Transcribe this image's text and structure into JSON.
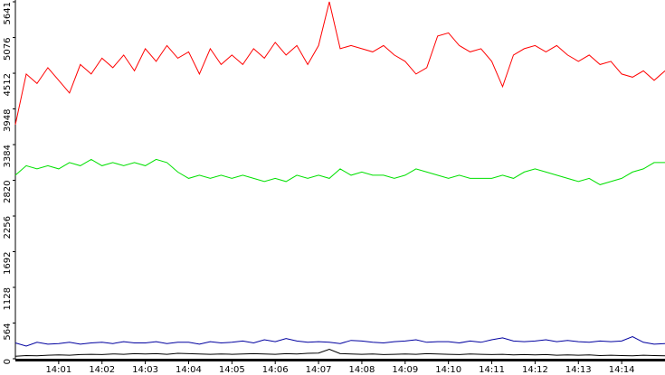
{
  "chart_data": {
    "type": "line",
    "x": [
      0,
      0.25,
      0.5,
      0.75,
      1,
      1.25,
      1.5,
      1.75,
      2,
      2.25,
      2.5,
      2.75,
      3,
      3.25,
      3.5,
      3.75,
      4,
      4.25,
      4.5,
      4.75,
      5,
      5.25,
      5.5,
      5.75,
      6,
      6.25,
      6.5,
      6.75,
      7,
      7.25,
      7.5,
      7.75,
      8,
      8.25,
      8.5,
      8.75,
      9,
      9.25,
      9.5,
      9.75,
      10,
      10.25,
      10.5,
      10.75,
      11,
      11.25,
      11.5,
      11.75,
      12,
      12.25,
      12.5,
      12.75,
      13,
      13.25,
      13.5,
      13.75,
      14,
      14.25,
      14.5,
      14.75,
      15
    ],
    "series": [
      {
        "color": "#ff0000",
        "values": [
          3700,
          4500,
          4350,
          4600,
          4400,
          4200,
          4650,
          4500,
          4750,
          4600,
          4800,
          4550,
          4900,
          4700,
          4950,
          4750,
          4850,
          4500,
          4900,
          4650,
          4800,
          4650,
          4900,
          4750,
          5000,
          4800,
          4950,
          4650,
          4950,
          5641,
          4900,
          4950,
          4900,
          4850,
          4950,
          4800,
          4700,
          4500,
          4600,
          5100,
          5150,
          4950,
          4850,
          4900,
          4700,
          4300,
          4800,
          4900,
          4950,
          4850,
          4950,
          4800,
          4700,
          4800,
          4650,
          4700,
          4500,
          4450,
          4550,
          4400,
          4550
        ]
      },
      {
        "color": "#00e000",
        "values": [
          2900,
          3050,
          3000,
          3050,
          3000,
          3100,
          3050,
          3150,
          3050,
          3100,
          3050,
          3100,
          3050,
          3150,
          3100,
          2950,
          2850,
          2900,
          2850,
          2900,
          2850,
          2900,
          2850,
          2800,
          2850,
          2800,
          2900,
          2850,
          2900,
          2850,
          3000,
          2900,
          2950,
          2900,
          2900,
          2850,
          2900,
          3000,
          2950,
          2900,
          2850,
          2900,
          2850,
          2850,
          2850,
          2900,
          2850,
          2950,
          3000,
          2950,
          2900,
          2850,
          2800,
          2850,
          2750,
          2800,
          2850,
          2950,
          3000,
          3100,
          3100
        ]
      },
      {
        "color": "#0000a0",
        "values": [
          250,
          200,
          260,
          230,
          240,
          260,
          230,
          250,
          260,
          240,
          270,
          250,
          250,
          270,
          240,
          260,
          260,
          230,
          270,
          250,
          260,
          280,
          250,
          300,
          270,
          320,
          280,
          260,
          270,
          260,
          240,
          290,
          280,
          260,
          250,
          270,
          280,
          300,
          260,
          270,
          270,
          250,
          280,
          260,
          300,
          330,
          280,
          270,
          280,
          300,
          270,
          290,
          270,
          260,
          280,
          270,
          280,
          350,
          260,
          230,
          240
        ]
      },
      {
        "color": "#000000",
        "values": [
          40,
          50,
          45,
          55,
          60,
          55,
          65,
          70,
          65,
          75,
          70,
          80,
          75,
          80,
          70,
          85,
          80,
          75,
          70,
          75,
          70,
          75,
          80,
          75,
          70,
          80,
          75,
          85,
          90,
          150,
          80,
          75,
          70,
          75,
          65,
          70,
          75,
          70,
          80,
          75,
          70,
          65,
          75,
          70,
          65,
          70,
          60,
          65,
          60,
          65,
          55,
          60,
          55,
          60,
          50,
          55,
          50,
          45,
          55,
          50,
          45
        ]
      }
    ],
    "xlim": [
      0,
      15
    ],
    "xticks": [
      {
        "value": 1,
        "label": "14:01"
      },
      {
        "value": 2,
        "label": "14:02"
      },
      {
        "value": 3,
        "label": "14:03"
      },
      {
        "value": 4,
        "label": "14:04"
      },
      {
        "value": 5,
        "label": "14:05"
      },
      {
        "value": 6,
        "label": "14:06"
      },
      {
        "value": 7,
        "label": "14:07"
      },
      {
        "value": 8,
        "label": "14:08"
      },
      {
        "value": 9,
        "label": "14:09"
      },
      {
        "value": 10,
        "label": "14:10"
      },
      {
        "value": 11,
        "label": "14:11"
      },
      {
        "value": 12,
        "label": "14:12"
      },
      {
        "value": 13,
        "label": "14:13"
      },
      {
        "value": 14,
        "label": "14:14"
      }
    ],
    "ylim": [
      0,
      5641
    ],
    "yticks": [
      0,
      564,
      1128,
      1692,
      2256,
      2820,
      3384,
      3948,
      4512,
      5076,
      5641
    ]
  }
}
